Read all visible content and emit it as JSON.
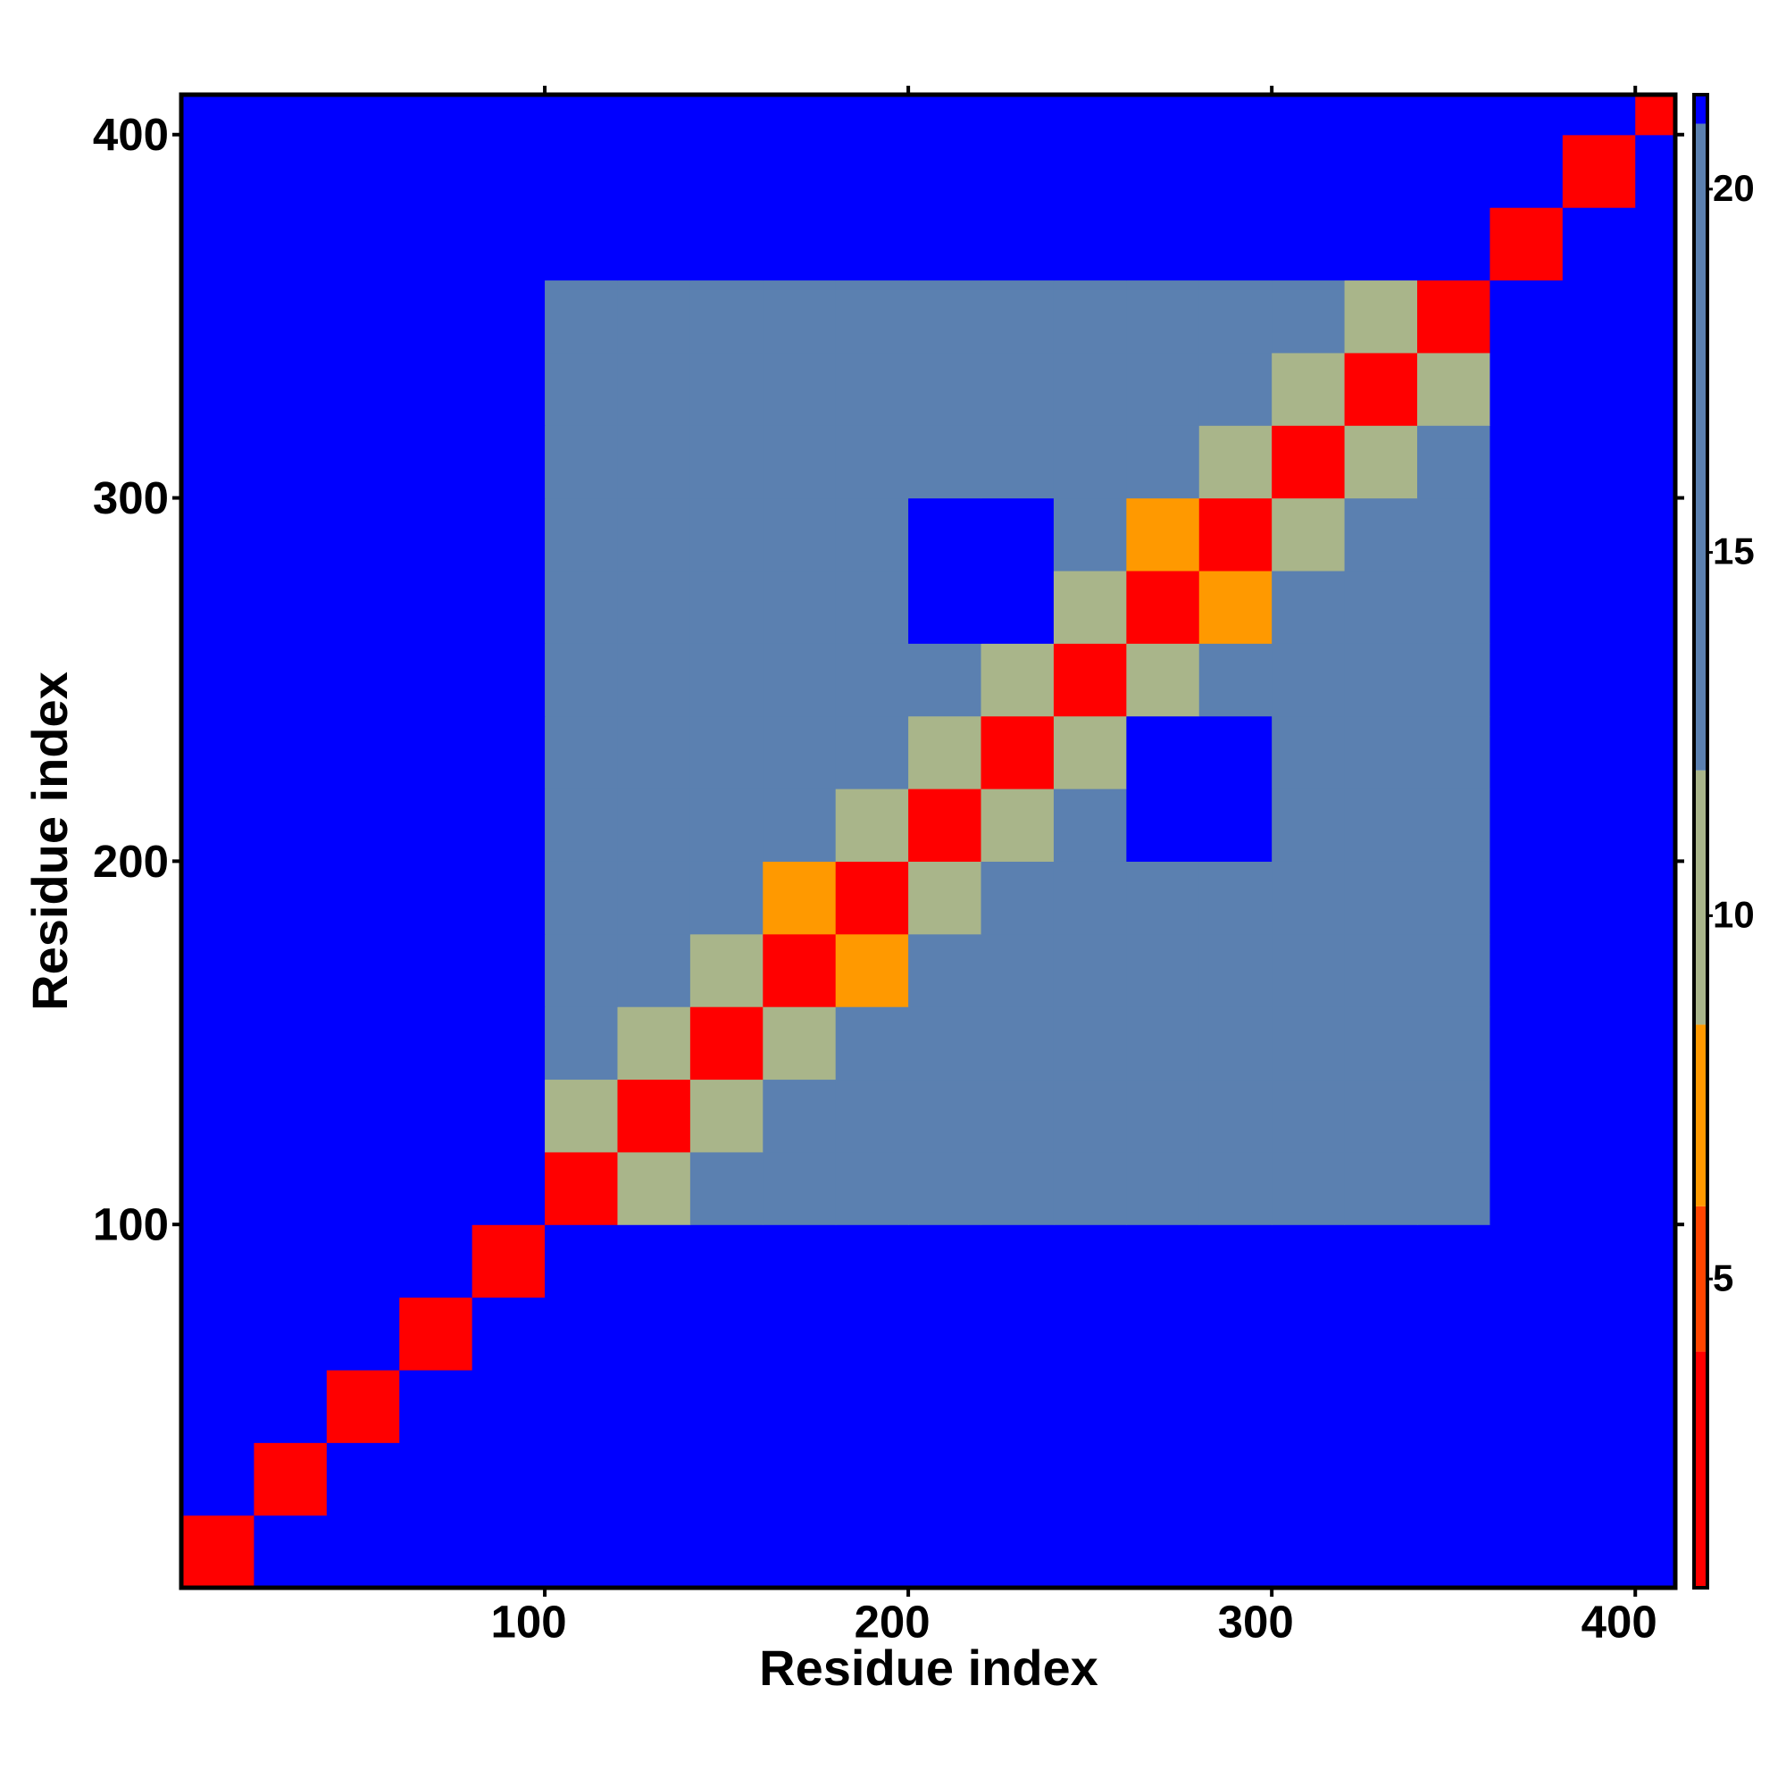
{
  "chart_data": {
    "type": "heatmap",
    "xlabel": "Residue index",
    "ylabel": "Residue index",
    "xlim": [
      0,
      411
    ],
    "ylim": [
      0,
      411
    ],
    "xticks": [
      100,
      200,
      300,
      400
    ],
    "yticks": [
      100,
      200,
      300,
      400
    ],
    "x_bins": [
      0,
      20,
      40,
      60,
      80,
      100,
      120,
      140,
      160,
      180,
      200,
      220,
      240,
      260,
      280,
      300,
      320,
      340,
      360,
      380,
      400,
      411
    ],
    "y_bins": [
      0,
      20,
      40,
      60,
      80,
      100,
      120,
      140,
      160,
      180,
      200,
      220,
      240,
      260,
      280,
      300,
      320,
      340,
      360,
      380,
      400,
      411
    ],
    "values": [
      [
        3,
        21,
        21,
        21,
        21,
        21,
        21,
        21,
        21,
        21,
        21,
        21,
        21,
        21,
        21,
        21,
        21,
        21,
        21,
        21,
        21
      ],
      [
        21,
        3,
        21,
        21,
        21,
        21,
        21,
        21,
        21,
        21,
        21,
        21,
        21,
        21,
        21,
        21,
        21,
        21,
        21,
        21,
        21
      ],
      [
        21,
        21,
        3,
        21,
        21,
        21,
        21,
        21,
        21,
        21,
        21,
        21,
        21,
        21,
        21,
        21,
        21,
        21,
        21,
        21,
        21
      ],
      [
        21,
        21,
        21,
        3,
        21,
        21,
        21,
        21,
        21,
        21,
        21,
        21,
        21,
        21,
        21,
        21,
        21,
        21,
        21,
        21,
        21
      ],
      [
        21,
        21,
        21,
        21,
        3,
        21,
        21,
        21,
        21,
        21,
        21,
        21,
        21,
        21,
        21,
        21,
        21,
        21,
        21,
        21,
        21
      ],
      [
        21,
        21,
        21,
        21,
        21,
        3,
        10,
        13,
        13,
        13,
        18,
        18,
        18,
        18,
        18,
        17,
        17,
        19,
        21,
        21,
        21
      ],
      [
        21,
        21,
        21,
        21,
        21,
        10,
        3,
        10,
        13,
        13,
        18,
        18,
        18,
        18,
        18,
        17,
        17,
        19,
        21,
        21,
        21
      ],
      [
        21,
        21,
        21,
        21,
        21,
        13,
        10,
        3,
        10,
        13,
        18,
        18,
        18,
        18,
        18,
        17,
        17,
        19,
        21,
        21,
        21
      ],
      [
        21,
        21,
        21,
        21,
        21,
        13,
        13,
        10,
        3,
        8,
        18,
        18,
        18,
        18,
        18,
        17,
        17,
        19,
        21,
        21,
        21
      ],
      [
        21,
        21,
        21,
        21,
        21,
        13,
        13,
        13,
        8,
        3,
        10,
        18,
        18,
        18,
        18,
        17,
        17,
        19,
        21,
        21,
        21
      ],
      [
        21,
        21,
        21,
        21,
        21,
        18,
        18,
        18,
        18,
        10,
        3,
        10,
        19,
        21,
        21,
        15,
        15,
        19,
        21,
        21,
        21
      ],
      [
        21,
        21,
        21,
        21,
        21,
        18,
        18,
        18,
        18,
        18,
        10,
        3,
        10,
        21,
        21,
        15,
        15,
        19,
        21,
        21,
        21
      ],
      [
        21,
        21,
        21,
        21,
        21,
        18,
        18,
        18,
        18,
        18,
        19,
        10,
        3,
        10,
        15,
        15,
        15,
        19,
        21,
        21,
        21
      ],
      [
        21,
        21,
        21,
        21,
        21,
        18,
        18,
        18,
        18,
        18,
        21,
        21,
        10,
        3,
        8,
        16,
        16,
        19,
        21,
        21,
        21
      ],
      [
        21,
        21,
        21,
        21,
        21,
        18,
        18,
        18,
        18,
        18,
        21,
        21,
        15,
        8,
        3,
        10,
        16,
        19,
        21,
        21,
        21
      ],
      [
        21,
        21,
        21,
        21,
        21,
        17,
        17,
        17,
        17,
        17,
        15,
        15,
        15,
        16,
        10,
        3,
        10,
        19,
        21,
        21,
        21
      ],
      [
        21,
        21,
        21,
        21,
        21,
        17,
        17,
        17,
        17,
        17,
        15,
        15,
        15,
        16,
        16,
        10,
        3,
        10,
        21,
        21,
        21
      ],
      [
        21,
        21,
        21,
        21,
        21,
        19,
        19,
        19,
        19,
        19,
        19,
        19,
        19,
        19,
        19,
        19,
        10,
        3,
        21,
        21,
        21
      ],
      [
        21,
        21,
        21,
        21,
        21,
        21,
        21,
        21,
        21,
        21,
        21,
        21,
        21,
        21,
        21,
        21,
        21,
        21,
        3,
        21,
        21
      ],
      [
        21,
        21,
        21,
        21,
        21,
        21,
        21,
        21,
        21,
        21,
        21,
        21,
        21,
        21,
        21,
        21,
        21,
        21,
        21,
        3,
        21
      ],
      [
        21,
        21,
        21,
        21,
        21,
        21,
        21,
        21,
        21,
        21,
        21,
        21,
        21,
        21,
        21,
        21,
        21,
        21,
        21,
        21,
        3
      ]
    ],
    "colorbar": {
      "lim": [
        0.75,
        21.3
      ],
      "ticks": [
        5,
        10,
        15,
        20
      ],
      "scale": [
        {
          "max": 4,
          "color": "#ff0000"
        },
        {
          "max": 6,
          "color": "#ff4500"
        },
        {
          "max": 8.5,
          "color": "#ff9900"
        },
        {
          "max": 12,
          "color": "#a9b58a"
        },
        {
          "max": 20.9,
          "color": "#5b80b0"
        },
        {
          "max": 21.3,
          "color": "#0000ff"
        }
      ]
    }
  }
}
